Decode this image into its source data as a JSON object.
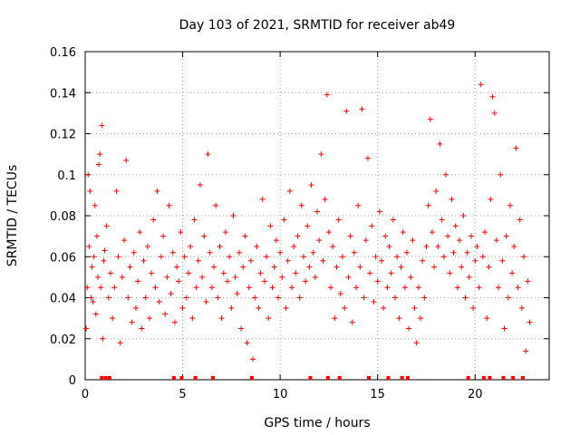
{
  "chart_data": {
    "type": "scatter",
    "title": "Day 103 of 2021, SRMTID for receiver ab49",
    "xlabel": "GPS time / hours",
    "ylabel": "SRMTID / TECUs",
    "xlim": [
      0,
      23.8
    ],
    "ylim": [
      0,
      0.16
    ],
    "grid": true,
    "marker": "+",
    "color": "#ff0000",
    "x_ticks": [
      0,
      5,
      10,
      15,
      20
    ],
    "x_tick_labels": [
      "0",
      "5",
      "10",
      "15",
      "20"
    ],
    "y_ticks": [
      0,
      0.02,
      0.04,
      0.06,
      0.08,
      0.1,
      0.12,
      0.14,
      0.16
    ],
    "y_tick_labels": [
      "0",
      "0.02",
      "0.04",
      "0.06",
      "0.08",
      "0.1",
      "0.12",
      "0.14",
      "0.16"
    ],
    "series": [
      {
        "name": "SRMTID",
        "points": [
          [
            0.05,
            0.025
          ],
          [
            0.1,
            0.045
          ],
          [
            0.15,
            0.1
          ],
          [
            0.2,
            0.065
          ],
          [
            0.25,
            0.092
          ],
          [
            0.3,
            0.04
          ],
          [
            0.35,
            0.055
          ],
          [
            0.4,
            0.038
          ],
          [
            0.45,
            0.06
          ],
          [
            0.5,
            0.085
          ],
          [
            0.55,
            0.032
          ],
          [
            0.6,
            0.07
          ],
          [
            0.65,
            0.05
          ],
          [
            0.7,
            0.105
          ],
          [
            0.75,
            0.11
          ],
          [
            0.8,
            0.045
          ],
          [
            0.85,
            0.124
          ],
          [
            0.9,
            0.02
          ],
          [
            0.95,
            0.058
          ],
          [
            1.0,
            0.063
          ],
          [
            1.1,
            0.075
          ],
          [
            1.2,
            0.04
          ],
          [
            1.3,
            0.052
          ],
          [
            1.4,
            0.03
          ],
          [
            1.5,
            0.045
          ],
          [
            1.6,
            0.092
          ],
          [
            1.7,
            0.06
          ],
          [
            1.8,
            0.018
          ],
          [
            1.9,
            0.05
          ],
          [
            2.0,
            0.068
          ],
          [
            2.1,
            0.107
          ],
          [
            2.2,
            0.04
          ],
          [
            2.3,
            0.055
          ],
          [
            2.4,
            0.028
          ],
          [
            2.5,
            0.062
          ],
          [
            2.6,
            0.035
          ],
          [
            2.7,
            0.048
          ],
          [
            2.8,
            0.072
          ],
          [
            2.9,
            0.025
          ],
          [
            3.0,
            0.058
          ],
          [
            3.1,
            0.04
          ],
          [
            3.2,
            0.065
          ],
          [
            3.3,
            0.03
          ],
          [
            3.4,
            0.052
          ],
          [
            3.5,
            0.078
          ],
          [
            3.6,
            0.045
          ],
          [
            3.7,
            0.092
          ],
          [
            3.8,
            0.038
          ],
          [
            3.9,
            0.06
          ],
          [
            4.0,
            0.07
          ],
          [
            4.1,
            0.032
          ],
          [
            4.2,
            0.05
          ],
          [
            4.3,
            0.085
          ],
          [
            4.4,
            0.042
          ],
          [
            4.5,
            0.062
          ],
          [
            4.6,
            0.028
          ],
          [
            4.7,
            0.055
          ],
          [
            4.8,
            0.048
          ],
          [
            4.9,
            0.072
          ],
          [
            5.0,
            0.035
          ],
          [
            5.1,
            0.06
          ],
          [
            5.2,
            0.04
          ],
          [
            5.3,
            0.052
          ],
          [
            5.4,
            0.065
          ],
          [
            5.5,
            0.03
          ],
          [
            5.6,
            0.078
          ],
          [
            5.7,
            0.045
          ],
          [
            5.8,
            0.058
          ],
          [
            5.9,
            0.095
          ],
          [
            6.0,
            0.05
          ],
          [
            6.1,
            0.07
          ],
          [
            6.2,
            0.038
          ],
          [
            6.3,
            0.11
          ],
          [
            6.4,
            0.062
          ],
          [
            6.5,
            0.045
          ],
          [
            6.6,
            0.055
          ],
          [
            6.7,
            0.085
          ],
          [
            6.8,
            0.04
          ],
          [
            6.9,
            0.065
          ],
          [
            7.0,
            0.03
          ],
          [
            7.1,
            0.052
          ],
          [
            7.2,
            0.072
          ],
          [
            7.3,
            0.048
          ],
          [
            7.4,
            0.06
          ],
          [
            7.5,
            0.035
          ],
          [
            7.6,
            0.08
          ],
          [
            7.7,
            0.05
          ],
          [
            7.8,
            0.042
          ],
          [
            7.9,
            0.062
          ],
          [
            8.0,
            0.025
          ],
          [
            8.1,
            0.055
          ],
          [
            8.2,
            0.07
          ],
          [
            8.3,
            0.018
          ],
          [
            8.4,
            0.045
          ],
          [
            8.5,
            0.058
          ],
          [
            8.6,
            0.01
          ],
          [
            8.7,
            0.04
          ],
          [
            8.8,
            0.065
          ],
          [
            8.9,
            0.035
          ],
          [
            9.0,
            0.052
          ],
          [
            9.1,
            0.088
          ],
          [
            9.2,
            0.048
          ],
          [
            9.3,
            0.06
          ],
          [
            9.4,
            0.03
          ],
          [
            9.5,
            0.075
          ],
          [
            9.6,
            0.045
          ],
          [
            9.7,
            0.055
          ],
          [
            9.8,
            0.068
          ],
          [
            9.9,
            0.04
          ],
          [
            10.0,
            0.062
          ],
          [
            10.1,
            0.05
          ],
          [
            10.2,
            0.078
          ],
          [
            10.3,
            0.035
          ],
          [
            10.4,
            0.058
          ],
          [
            10.5,
            0.092
          ],
          [
            10.6,
            0.045
          ],
          [
            10.7,
            0.065
          ],
          [
            10.8,
            0.052
          ],
          [
            10.9,
            0.07
          ],
          [
            11.0,
            0.04
          ],
          [
            11.1,
            0.085
          ],
          [
            11.2,
            0.06
          ],
          [
            11.3,
            0.048
          ],
          [
            11.4,
            0.075
          ],
          [
            11.5,
            0.055
          ],
          [
            11.6,
            0.095
          ],
          [
            11.7,
            0.062
          ],
          [
            11.8,
            0.05
          ],
          [
            11.9,
            0.082
          ],
          [
            12.0,
            0.068
          ],
          [
            12.1,
            0.11
          ],
          [
            12.2,
            0.058
          ],
          [
            12.3,
            0.088
          ],
          [
            12.4,
            0.139
          ],
          [
            12.5,
            0.072
          ],
          [
            12.6,
            0.045
          ],
          [
            12.7,
            0.065
          ],
          [
            12.8,
            0.03
          ],
          [
            12.9,
            0.055
          ],
          [
            13.0,
            0.078
          ],
          [
            13.1,
            0.042
          ],
          [
            13.2,
            0.06
          ],
          [
            13.3,
            0.035
          ],
          [
            13.4,
            0.131
          ],
          [
            13.5,
            0.05
          ],
          [
            13.6,
            0.07
          ],
          [
            13.7,
            0.028
          ],
          [
            13.8,
            0.062
          ],
          [
            13.9,
            0.045
          ],
          [
            14.0,
            0.085
          ],
          [
            14.1,
            0.055
          ],
          [
            14.2,
            0.132
          ],
          [
            14.3,
            0.04
          ],
          [
            14.4,
            0.068
          ],
          [
            14.5,
            0.108
          ],
          [
            14.6,
            0.052
          ],
          [
            14.7,
            0.075
          ],
          [
            14.8,
            0.038
          ],
          [
            14.9,
            0.06
          ],
          [
            15.0,
            0.048
          ],
          [
            15.1,
            0.082
          ],
          [
            15.2,
            0.058
          ],
          [
            15.3,
            0.035
          ],
          [
            15.4,
            0.07
          ],
          [
            15.5,
            0.045
          ],
          [
            15.6,
            0.065
          ],
          [
            15.7,
            0.052
          ],
          [
            15.8,
            0.078
          ],
          [
            15.9,
            0.04
          ],
          [
            16.0,
            0.06
          ],
          [
            16.1,
            0.03
          ],
          [
            16.2,
            0.055
          ],
          [
            16.3,
            0.072
          ],
          [
            16.4,
            0.045
          ],
          [
            16.5,
            0.062
          ],
          [
            16.6,
            0.025
          ],
          [
            16.7,
            0.05
          ],
          [
            16.8,
            0.068
          ],
          [
            16.9,
            0.035
          ],
          [
            17.0,
            0.018
          ],
          [
            17.1,
            0.045
          ],
          [
            17.2,
            0.03
          ],
          [
            17.3,
            0.058
          ],
          [
            17.4,
            0.04
          ],
          [
            17.5,
            0.065
          ],
          [
            17.6,
            0.085
          ],
          [
            17.7,
            0.127
          ],
          [
            17.8,
            0.072
          ],
          [
            17.9,
            0.055
          ],
          [
            18.0,
            0.092
          ],
          [
            18.1,
            0.065
          ],
          [
            18.2,
            0.115
          ],
          [
            18.3,
            0.078
          ],
          [
            18.4,
            0.06
          ],
          [
            18.5,
            0.1
          ],
          [
            18.6,
            0.07
          ],
          [
            18.7,
            0.052
          ],
          [
            18.8,
            0.088
          ],
          [
            18.9,
            0.062
          ],
          [
            19.0,
            0.075
          ],
          [
            19.1,
            0.045
          ],
          [
            19.2,
            0.068
          ],
          [
            19.3,
            0.055
          ],
          [
            19.4,
            0.08
          ],
          [
            19.5,
            0.04
          ],
          [
            19.6,
            0.062
          ],
          [
            19.7,
            0.05
          ],
          [
            19.8,
            0.07
          ],
          [
            19.9,
            0.035
          ],
          [
            20.0,
            0.058
          ],
          [
            20.1,
            0.065
          ],
          [
            20.2,
            0.045
          ],
          [
            20.3,
            0.144
          ],
          [
            20.4,
            0.06
          ],
          [
            20.5,
            0.072
          ],
          [
            20.6,
            0.03
          ],
          [
            20.7,
            0.055
          ],
          [
            20.8,
            0.088
          ],
          [
            20.9,
            0.138
          ],
          [
            21.0,
            0.13
          ],
          [
            21.1,
            0.068
          ],
          [
            21.2,
            0.045
          ],
          [
            21.3,
            0.1
          ],
          [
            21.4,
            0.058
          ],
          [
            21.5,
            0.025
          ],
          [
            21.6,
            0.07
          ],
          [
            21.7,
            0.04
          ],
          [
            21.8,
            0.085
          ],
          [
            21.9,
            0.052
          ],
          [
            22.0,
            0.065
          ],
          [
            22.1,
            0.113
          ],
          [
            22.2,
            0.045
          ],
          [
            22.3,
            0.078
          ],
          [
            22.4,
            0.035
          ],
          [
            22.5,
            0.06
          ],
          [
            22.6,
            0.014
          ],
          [
            22.7,
            0.048
          ],
          [
            22.8,
            0.028
          ]
        ]
      }
    ],
    "bottom_markers_x": [
      0.85,
      1.05,
      1.25,
      4.55,
      4.95,
      5.65,
      6.55,
      8.55,
      11.55,
      12.45,
      13.05,
      14.55,
      15.55,
      16.25,
      16.55,
      19.65,
      20.45,
      20.75,
      21.45,
      21.95,
      22.45
    ]
  }
}
